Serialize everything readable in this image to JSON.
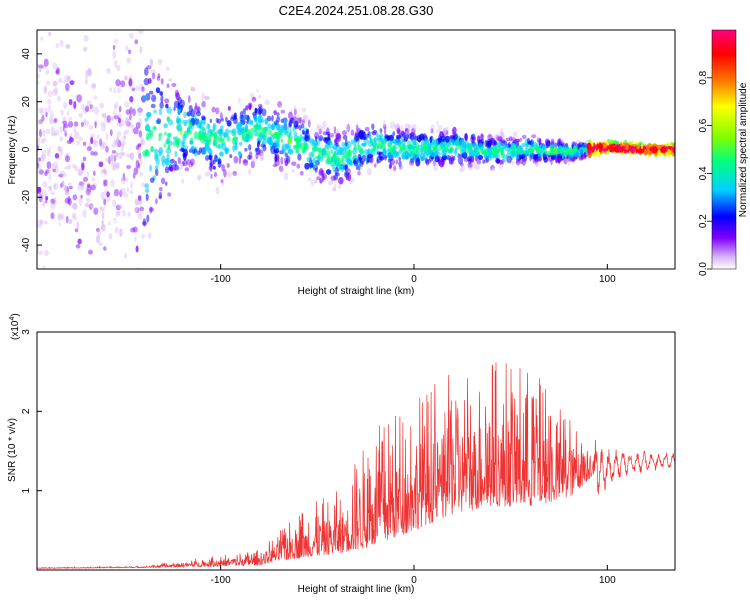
{
  "title": "C2E4.2024.251.08.28.G30",
  "chart_data": [
    {
      "type": "heatmap",
      "title": "C2E4.2024.251.08.28.G30",
      "xlabel": "Height of straight line (km)",
      "ylabel": "Frequency (Hz)",
      "xlim": [
        -195,
        135
      ],
      "ylim": [
        -50,
        50
      ],
      "xticks": [
        -100,
        0,
        100
      ],
      "xtick_labels": [
        "-100",
        "0",
        "100"
      ],
      "yticks": [
        -40,
        -20,
        0,
        20,
        40
      ],
      "ytick_labels": [
        "-40",
        "-20",
        "0",
        "20",
        "40"
      ],
      "colorbar": {
        "label": "Normalized spectral amplitude",
        "range": [
          0,
          1
        ],
        "ticks": [
          0.0,
          0.2,
          0.4,
          0.6,
          0.8
        ],
        "tick_labels": [
          "0.0",
          "0.2",
          "0.4",
          "0.6",
          "0.8"
        ],
        "colormap": [
          "#ffffff",
          "#d8b4f8",
          "#8000ff",
          "#0000ff",
          "#00d0ff",
          "#00ff80",
          "#80ff00",
          "#ffff00",
          "#ff8000",
          "#ff0000",
          "#ff0080"
        ]
      },
      "ridge": [
        {
          "x": -195,
          "f": 0
        },
        {
          "x": -160,
          "f": -2
        },
        {
          "x": -140,
          "f": 0
        },
        {
          "x": -120,
          "f": 8
        },
        {
          "x": -100,
          "f": 3
        },
        {
          "x": -80,
          "f": 9
        },
        {
          "x": -60,
          "f": 2
        },
        {
          "x": -40,
          "f": -4
        },
        {
          "x": -20,
          "f": 2
        },
        {
          "x": 0,
          "f": 0
        },
        {
          "x": 20,
          "f": 1
        },
        {
          "x": 40,
          "f": -1
        },
        {
          "x": 60,
          "f": 0
        },
        {
          "x": 80,
          "f": -1
        },
        {
          "x": 100,
          "f": 1
        },
        {
          "x": 120,
          "f": 0
        },
        {
          "x": 135,
          "f": 0
        }
      ],
      "spread_hz": [
        {
          "x": -195,
          "s": 50
        },
        {
          "x": -140,
          "s": 50
        },
        {
          "x": -120,
          "s": 20
        },
        {
          "x": -80,
          "s": 16
        },
        {
          "x": -40,
          "s": 14
        },
        {
          "x": 0,
          "s": 10
        },
        {
          "x": 40,
          "s": 8
        },
        {
          "x": 80,
          "s": 5
        },
        {
          "x": 100,
          "s": 2
        },
        {
          "x": 135,
          "s": 2
        }
      ]
    },
    {
      "type": "line",
      "xlabel": "Height of straight line (km)",
      "ylabel": "SNR (10 * v/v)",
      "y_multiplier": "(x10",
      "y_exponent": "4",
      "xlim": [
        -195,
        135
      ],
      "ylim": [
        0,
        3
      ],
      "xticks": [
        -100,
        0,
        100
      ],
      "xtick_labels": [
        "-100",
        "0",
        "100"
      ],
      "yticks": [
        1,
        2,
        3
      ],
      "ytick_labels": [
        "1",
        "2",
        "3"
      ],
      "color": "#ee3333",
      "envelope": [
        {
          "x": -195,
          "base": 0.02,
          "amp": 0.01
        },
        {
          "x": -140,
          "base": 0.03,
          "amp": 0.02
        },
        {
          "x": -110,
          "base": 0.04,
          "amp": 0.12
        },
        {
          "x": -80,
          "base": 0.06,
          "amp": 0.2
        },
        {
          "x": -60,
          "base": 0.15,
          "amp": 0.6
        },
        {
          "x": -40,
          "base": 0.2,
          "amp": 0.8
        },
        {
          "x": -20,
          "base": 0.3,
          "amp": 1.5
        },
        {
          "x": 0,
          "base": 0.5,
          "amp": 1.7
        },
        {
          "x": 20,
          "base": 0.7,
          "amp": 1.8
        },
        {
          "x": 40,
          "base": 0.8,
          "amp": 1.9
        },
        {
          "x": 60,
          "base": 0.8,
          "amp": 1.8
        },
        {
          "x": 80,
          "base": 0.9,
          "amp": 1.1
        },
        {
          "x": 95,
          "base": 1.25,
          "amp": 0.4
        },
        {
          "x": 110,
          "base": 1.35,
          "amp": 0.2
        },
        {
          "x": 135,
          "base": 1.38,
          "amp": 0.12
        }
      ]
    }
  ]
}
